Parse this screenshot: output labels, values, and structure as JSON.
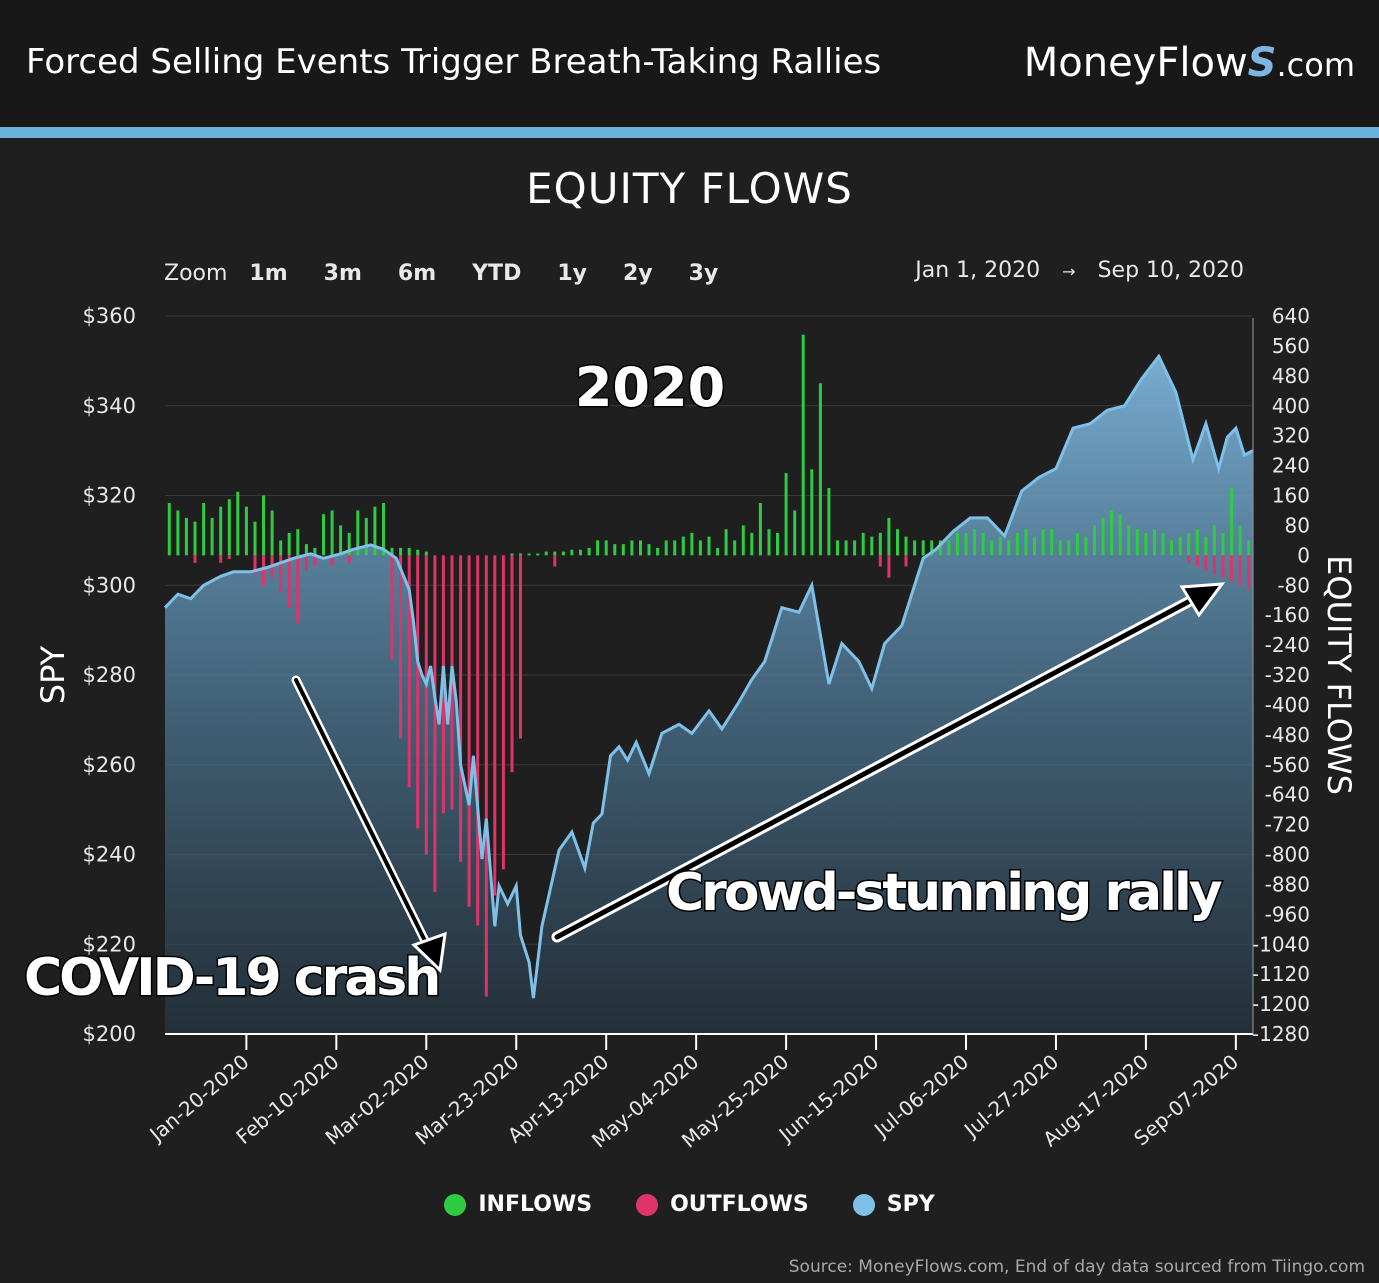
{
  "header": {
    "title": "Forced Selling Events Trigger Breath-Taking Rallies",
    "brand": {
      "name": "MoneyFlow",
      "mark": "S",
      "suffix": ".com"
    }
  },
  "colors": {
    "background": "#1f1f1f",
    "accent": "#6bb3df",
    "inflows": "#2ecc40",
    "outflows": "#e0336a",
    "spy": "#7fc0e8"
  },
  "zoom": {
    "label": "Zoom",
    "options": [
      "1m",
      "3m",
      "6m",
      "YTD",
      "1y",
      "2y",
      "3y"
    ]
  },
  "date_range": {
    "start": "Jan 1, 2020",
    "arrow": "→",
    "end": "Sep 10, 2020"
  },
  "source": "Source: MoneyFlows.com, End of day data sourced from Tiingo.com",
  "chart_data": {
    "type": "bar",
    "title": "EQUITY FLOWS",
    "ylabel_left": "SPY",
    "ylabel_right": "EQUITY FLOWS",
    "left_axis": {
      "ylim": [
        200,
        360
      ],
      "ticks": [
        "$200",
        "$220",
        "$240",
        "$260",
        "$280",
        "$300",
        "$320",
        "$340",
        "$360"
      ]
    },
    "right_axis": {
      "ylim": [
        -1280,
        640
      ],
      "ticks": [
        "640",
        "560",
        "480",
        "400",
        "320",
        "240",
        "160",
        "80",
        "0",
        "-80",
        "-160",
        "-240",
        "-320",
        "-400",
        "-480",
        "-560",
        "-640",
        "-720",
        "-800",
        "-880",
        "-960",
        "-1040",
        "-1120",
        "-1200",
        "-1280"
      ]
    },
    "x_ticks": [
      "Jan-20-2020",
      "Feb-10-2020",
      "Mar-02-2020",
      "Mar-23-2020",
      "Apr-13-2020",
      "May-04-2020",
      "May-25-2020",
      "Jun-15-2020",
      "Jul-06-2020",
      "Jul-27-2020",
      "Aug-17-2020",
      "Sep-07-2020"
    ],
    "x_range_days": [
      0,
      254
    ],
    "spy": {
      "name": "SPY",
      "x": [
        0,
        3,
        6,
        9,
        13,
        16,
        20,
        24,
        27,
        30,
        34,
        37,
        41,
        44,
        48,
        51,
        54,
        57,
        58,
        59,
        60,
        61,
        62,
        63,
        64,
        65,
        66,
        67,
        68,
        69,
        71,
        72,
        74,
        75,
        77,
        78,
        80,
        82,
        83,
        85,
        86,
        88,
        92,
        95,
        98,
        100,
        102,
        104,
        106,
        108,
        110,
        113,
        116,
        120,
        123,
        127,
        130,
        134,
        137,
        140,
        144,
        148,
        151,
        155,
        158,
        162,
        165,
        168,
        170,
        172,
        174,
        177,
        180,
        184,
        188,
        192,
        196,
        200,
        204,
        208,
        212,
        216,
        220,
        224,
        228,
        232,
        236,
        240,
        243,
        246,
        248,
        250,
        252,
        254
      ],
      "values": [
        295,
        298,
        297,
        300,
        302,
        303,
        303,
        304,
        305,
        306,
        307,
        306,
        307,
        308,
        309,
        308,
        306,
        299,
        292,
        283,
        280,
        278,
        282,
        275,
        269,
        282,
        269,
        282,
        274,
        260,
        251,
        262,
        239,
        248,
        224,
        233,
        229,
        233,
        222,
        216,
        208,
        224,
        241,
        245,
        237,
        247,
        249,
        262,
        264,
        261,
        265,
        258,
        267,
        269,
        267,
        272,
        268,
        274,
        279,
        283,
        295,
        294,
        300,
        278,
        287,
        283,
        277,
        287,
        289,
        291,
        297,
        306,
        308,
        312,
        315,
        315,
        311,
        321,
        324,
        326,
        335,
        336,
        339,
        340,
        346,
        351,
        343,
        328,
        336,
        326,
        333,
        335,
        329,
        330
      ]
    },
    "flows": {
      "x": [
        1,
        3,
        5,
        7,
        9,
        11,
        13,
        15,
        17,
        19,
        21,
        23,
        25,
        27,
        29,
        31,
        33,
        35,
        37,
        39,
        41,
        43,
        45,
        47,
        49,
        51,
        53,
        55,
        57,
        59,
        61,
        63,
        65,
        67,
        69,
        71,
        73,
        75,
        77,
        79,
        81,
        83,
        85,
        87,
        89,
        91,
        93,
        95,
        97,
        99,
        101,
        103,
        105,
        107,
        109,
        111,
        113,
        115,
        117,
        119,
        121,
        123,
        125,
        127,
        129,
        131,
        133,
        135,
        137,
        139,
        141,
        143,
        145,
        147,
        149,
        151,
        153,
        155,
        157,
        159,
        161,
        163,
        165,
        167,
        169,
        171,
        173,
        175,
        177,
        179,
        181,
        183,
        185,
        187,
        189,
        191,
        193,
        195,
        197,
        199,
        201,
        203,
        205,
        207,
        209,
        211,
        213,
        215,
        217,
        219,
        221,
        223,
        225,
        227,
        229,
        231,
        233,
        235,
        237,
        239,
        241,
        243,
        245,
        247,
        249,
        251,
        253
      ],
      "inflows": [
        140,
        120,
        100,
        90,
        140,
        100,
        130,
        150,
        170,
        130,
        90,
        160,
        120,
        40,
        60,
        70,
        30,
        20,
        110,
        120,
        80,
        60,
        120,
        100,
        130,
        140,
        20,
        20,
        20,
        15,
        10,
        0,
        0,
        0,
        0,
        0,
        0,
        0,
        0,
        0,
        5,
        5,
        5,
        5,
        10,
        10,
        10,
        15,
        15,
        20,
        40,
        40,
        30,
        30,
        40,
        40,
        30,
        20,
        40,
        40,
        50,
        60,
        40,
        50,
        20,
        70,
        40,
        80,
        60,
        140,
        70,
        60,
        220,
        120,
        590,
        230,
        460,
        180,
        40,
        40,
        40,
        60,
        50,
        60,
        100,
        70,
        50,
        40,
        40,
        40,
        40,
        40,
        60,
        60,
        70,
        60,
        40,
        50,
        40,
        60,
        70,
        50,
        70,
        70,
        40,
        40,
        60,
        50,
        80,
        100,
        120,
        110,
        80,
        70,
        60,
        70,
        60,
        40,
        50,
        60,
        70,
        50,
        80,
        60,
        180,
        80,
        40
      ],
      "outflows": [
        0,
        0,
        0,
        -20,
        0,
        0,
        -20,
        -10,
        0,
        0,
        -50,
        -80,
        -60,
        -100,
        -140,
        -180,
        -40,
        -30,
        0,
        -30,
        0,
        -20,
        0,
        0,
        0,
        0,
        -280,
        -490,
        -620,
        -730,
        -800,
        -900,
        -690,
        -680,
        -820,
        -940,
        -990,
        -1180,
        -910,
        -840,
        -580,
        -490,
        0,
        0,
        0,
        -30,
        0,
        0,
        0,
        0,
        0,
        0,
        0,
        0,
        0,
        0,
        0,
        0,
        0,
        0,
        0,
        0,
        0,
        0,
        0,
        0,
        0,
        0,
        0,
        0,
        0,
        0,
        0,
        0,
        0,
        0,
        0,
        0,
        0,
        0,
        0,
        0,
        0,
        -30,
        -60,
        0,
        -30,
        0,
        0,
        0,
        0,
        0,
        0,
        0,
        0,
        0,
        0,
        0,
        0,
        0,
        0,
        0,
        0,
        0,
        0,
        0,
        0,
        0,
        0,
        0,
        0,
        0,
        0,
        0,
        0,
        0,
        0,
        0,
        0,
        -20,
        -30,
        -40,
        -50,
        -60,
        -70,
        -80,
        -90
      ]
    },
    "legend": [
      "INFLOWS",
      "OUTFLOWS",
      "SPY"
    ],
    "annotations": {
      "year": "2020",
      "crash": "COVID-19 crash",
      "rally": "Crowd-stunning rally"
    }
  }
}
